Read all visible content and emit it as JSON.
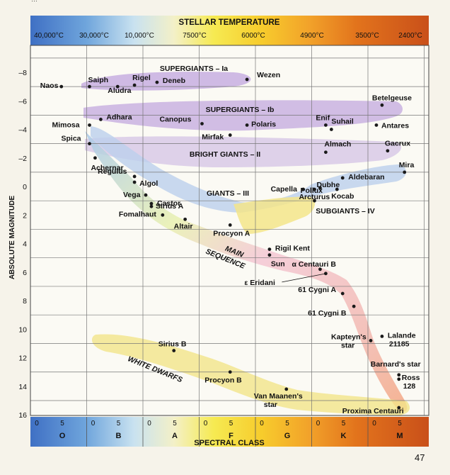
{
  "header_fragment": "…",
  "page_number": "47",
  "colors": {
    "grid": "#777777",
    "frame": "#444444",
    "star": "#1a1a1a",
    "band_violet": "#c7aee0",
    "band_blue": "#bcd0ec",
    "band_yellow": "#f3e58a",
    "band_pink": "#f1b8c8",
    "band_orange": "#f4b080"
  },
  "chart_data": {
    "type": "scatter",
    "title": "STELLAR TEMPERATURE",
    "xlabel": "SPECTRAL CLASS",
    "ylabel": "ABSOLUTE MAGNITUDE",
    "ylim": [
      -9,
      17
    ],
    "y_ticks": [
      -8,
      -6,
      -4,
      -2,
      0,
      2,
      4,
      6,
      8,
      10,
      12,
      14,
      16
    ],
    "y_reversed": true,
    "grid": true,
    "temperature_labels": [
      "40,000°C",
      "30,000°C",
      "10,000°C",
      "7500°C",
      "6000°C",
      "4900°C",
      "3500°C",
      "2400°C"
    ],
    "spectral_classes": [
      {
        "name": "O",
        "ticks": [
          "0",
          "5"
        ]
      },
      {
        "name": "B",
        "ticks": [
          "0",
          "5"
        ]
      },
      {
        "name": "A",
        "ticks": [
          "0",
          "5"
        ]
      },
      {
        "name": "F",
        "ticks": [
          "0",
          "5"
        ]
      },
      {
        "name": "G",
        "ticks": [
          "0",
          "5"
        ]
      },
      {
        "name": "K",
        "ticks": [
          "0",
          "5"
        ]
      },
      {
        "name": "M",
        "ticks": [
          "0",
          "5"
        ]
      }
    ],
    "regions": [
      {
        "label": "SUPERGIANTS – Ia"
      },
      {
        "label": "SUPERGIANTS – Ib"
      },
      {
        "label": "BRIGHT GIANTS – II"
      },
      {
        "label": "GIANTS – III"
      },
      {
        "label": "SUBGIANTS – IV"
      },
      {
        "label": "MAIN SEQUENCE"
      },
      {
        "label": "WHITE DWARFS"
      }
    ],
    "stars": [
      {
        "name": "Naos",
        "type": "O5",
        "mag": -7.0
      },
      {
        "name": "Saiph",
        "type": "B0",
        "mag": -7.0
      },
      {
        "name": "Rigel",
        "type": "B8",
        "mag": -7.1
      },
      {
        "name": "Aludra",
        "type": "B5",
        "mag": -7.0
      },
      {
        "name": "Deneb",
        "type": "A2",
        "mag": -7.3
      },
      {
        "name": "Wezen",
        "type": "F8",
        "mag": -7.5
      },
      {
        "name": "Betelgeuse",
        "type": "M2",
        "mag": -5.7
      },
      {
        "name": "Mimosa",
        "type": "B0",
        "mag": -4.3
      },
      {
        "name": "Adhara",
        "type": "B2",
        "mag": -4.7
      },
      {
        "name": "Canopus",
        "type": "F0",
        "mag": -4.4
      },
      {
        "name": "Mirfak",
        "type": "F5",
        "mag": -3.6
      },
      {
        "name": "Polaris",
        "type": "F8",
        "mag": -4.3
      },
      {
        "name": "Enif",
        "type": "K2",
        "mag": -4.3
      },
      {
        "name": "Suhail",
        "type": "K3",
        "mag": -4.0
      },
      {
        "name": "Antares",
        "type": "M1",
        "mag": -4.3
      },
      {
        "name": "Spica",
        "type": "B0",
        "mag": -3.0
      },
      {
        "name": "Achernar",
        "type": "B1",
        "mag": -2.0
      },
      {
        "name": "Almach",
        "type": "K2",
        "mag": -2.4
      },
      {
        "name": "Gacrux",
        "type": "M3",
        "mag": -2.5
      },
      {
        "name": "Regulus",
        "type": "B8",
        "mag": -0.7
      },
      {
        "name": "Algol",
        "type": "B8",
        "mag": -0.3
      },
      {
        "name": "Pollux",
        "type": "K0",
        "mag": 1.0
      },
      {
        "name": "Dubhe",
        "type": "K0",
        "mag": 0.2
      },
      {
        "name": "Aldebaran",
        "type": "K5",
        "mag": -0.6
      },
      {
        "name": "Mira",
        "type": "M6",
        "mag": -1.0
      },
      {
        "name": "Capella",
        "type": "G8",
        "mag": 0.2
      },
      {
        "name": "Kocab",
        "type": "K4",
        "mag": 0.2
      },
      {
        "name": "Arcturus",
        "type": "K1",
        "mag": 0.1
      },
      {
        "name": "Vega",
        "type": "A0",
        "mag": 0.6
      },
      {
        "name": "Castor",
        "type": "A1",
        "mag": 1.2
      },
      {
        "name": "Sirius A",
        "type": "A1",
        "mag": 1.4
      },
      {
        "name": "Fomalhaut",
        "type": "A3",
        "mag": 2.0
      },
      {
        "name": "Altair",
        "type": "A7",
        "mag": 2.3
      },
      {
        "name": "Procyon A",
        "type": "F5",
        "mag": 2.7
      },
      {
        "name": "Rigil Kent",
        "type": "G2",
        "mag": 4.4
      },
      {
        "name": "Sun",
        "type": "G2",
        "mag": 4.8
      },
      {
        "name": "α Centauri B",
        "type": "K1",
        "mag": 5.8
      },
      {
        "name": "ε Eridani",
        "type": "K2",
        "mag": 6.1
      },
      {
        "name": "61 Cygni A",
        "type": "K5",
        "mag": 7.5
      },
      {
        "name": "61 Cygni B",
        "type": "K7",
        "mag": 8.4
      },
      {
        "name": "Kapteyn's star",
        "type": "M0",
        "mag": 10.8
      },
      {
        "name": "Lalande 21185",
        "type": "M2",
        "mag": 10.5
      },
      {
        "name": "Barnard's star",
        "type": "M5",
        "mag": 13.2
      },
      {
        "name": "Ross 128",
        "type": "M5",
        "mag": 13.5
      },
      {
        "name": "Proxima Centauri",
        "type": "M5",
        "mag": 15.5
      },
      {
        "name": "Sirius B",
        "type": "A5",
        "mag": 11.5
      },
      {
        "name": "Procyon B",
        "type": "F5",
        "mag": 13.0
      },
      {
        "name": "Van Maanen's star",
        "type": "G5",
        "mag": 14.2
      }
    ]
  }
}
